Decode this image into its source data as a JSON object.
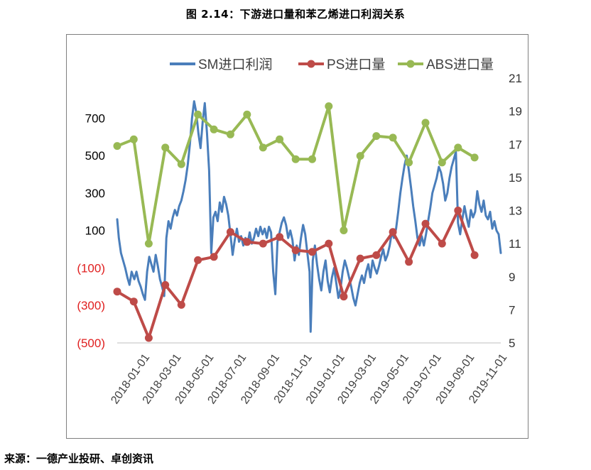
{
  "figure": {
    "caption": "图 2.14：下游进口量和苯乙烯进口利润关系",
    "source": "来源：一德产业投研、卓创资讯"
  },
  "chart_data": {
    "type": "line",
    "title": "",
    "grid": false,
    "legend_position": "top",
    "colors": {
      "sm": "#4a7ebb",
      "ps": "#be4b48",
      "abs": "#98b954",
      "neg_label": "#e02020"
    },
    "left_axis": {
      "ylim": [
        -500,
        800
      ],
      "ticks": [
        -500,
        -300,
        -100,
        100,
        300,
        500,
        700
      ],
      "tick_labels": [
        "(500)",
        "(300)",
        "(100)",
        "100",
        "300",
        "500",
        "700"
      ]
    },
    "right_axis": {
      "ylim": [
        5,
        21
      ],
      "ticks": [
        5,
        7,
        9,
        11,
        13,
        15,
        17,
        19,
        21
      ],
      "tick_labels": [
        "5",
        "7",
        "9",
        "11",
        "13",
        "15",
        "17",
        "19",
        "21"
      ]
    },
    "x_axis": {
      "range": [
        "2018-01-01",
        "2019-12-20"
      ],
      "tick_labels": [
        "2018-01-01",
        "2018-03-01",
        "2018-05-01",
        "2018-07-01",
        "2018-09-01",
        "2018-11-01",
        "2019-01-01",
        "2019-03-01",
        "2019-05-01",
        "2019-07-01",
        "2019-09-01",
        "2019-11-01"
      ]
    },
    "series": [
      {
        "name": "SM进口利润",
        "axis": "left",
        "style": "line",
        "points": [
          [
            "2018-01-01",
            160
          ],
          [
            "2018-01-04",
            60
          ],
          [
            "2018-01-08",
            -20
          ],
          [
            "2018-01-12",
            -60
          ],
          [
            "2018-01-16",
            -100
          ],
          [
            "2018-01-20",
            -150
          ],
          [
            "2018-01-24",
            -190
          ],
          [
            "2018-01-28",
            -120
          ],
          [
            "2018-02-02",
            -160
          ],
          [
            "2018-02-06",
            -120
          ],
          [
            "2018-02-10",
            -170
          ],
          [
            "2018-02-14",
            -200
          ],
          [
            "2018-02-18",
            -240
          ],
          [
            "2018-02-22",
            -270
          ],
          [
            "2018-02-26",
            -120
          ],
          [
            "2018-03-02",
            -40
          ],
          [
            "2018-03-06",
            -80
          ],
          [
            "2018-03-10",
            -120
          ],
          [
            "2018-03-14",
            -30
          ],
          [
            "2018-03-18",
            -90
          ],
          [
            "2018-03-22",
            -160
          ],
          [
            "2018-03-26",
            -200
          ],
          [
            "2018-03-30",
            -250
          ],
          [
            "2018-04-03",
            60
          ],
          [
            "2018-04-07",
            150
          ],
          [
            "2018-04-11",
            110
          ],
          [
            "2018-04-15",
            170
          ],
          [
            "2018-04-19",
            210
          ],
          [
            "2018-04-23",
            180
          ],
          [
            "2018-04-27",
            230
          ],
          [
            "2018-05-01",
            260
          ],
          [
            "2018-05-05",
            310
          ],
          [
            "2018-05-09",
            370
          ],
          [
            "2018-05-13",
            450
          ],
          [
            "2018-05-17",
            560
          ],
          [
            "2018-05-21",
            700
          ],
          [
            "2018-05-25",
            790
          ],
          [
            "2018-05-29",
            730
          ],
          [
            "2018-06-02",
            620
          ],
          [
            "2018-06-06",
            540
          ],
          [
            "2018-06-10",
            680
          ],
          [
            "2018-06-14",
            780
          ],
          [
            "2018-06-18",
            620
          ],
          [
            "2018-06-22",
            420
          ],
          [
            "2018-06-26",
            -20
          ],
          [
            "2018-06-30",
            170
          ],
          [
            "2018-07-04",
            200
          ],
          [
            "2018-07-08",
            150
          ],
          [
            "2018-07-12",
            250
          ],
          [
            "2018-07-16",
            200
          ],
          [
            "2018-07-20",
            280
          ],
          [
            "2018-07-24",
            240
          ],
          [
            "2018-07-28",
            180
          ],
          [
            "2018-08-01",
            80
          ],
          [
            "2018-08-05",
            -30
          ],
          [
            "2018-08-09",
            50
          ],
          [
            "2018-08-13",
            110
          ],
          [
            "2018-08-17",
            40
          ],
          [
            "2018-08-21",
            70
          ],
          [
            "2018-08-25",
            20
          ],
          [
            "2018-08-29",
            60
          ],
          [
            "2018-09-02",
            30
          ],
          [
            "2018-09-06",
            90
          ],
          [
            "2018-09-10",
            30
          ],
          [
            "2018-09-14",
            60
          ],
          [
            "2018-09-18",
            110
          ],
          [
            "2018-09-22",
            70
          ],
          [
            "2018-09-26",
            120
          ],
          [
            "2018-09-30",
            80
          ],
          [
            "2018-10-04",
            110
          ],
          [
            "2018-10-08",
            60
          ],
          [
            "2018-10-12",
            120
          ],
          [
            "2018-10-16",
            90
          ],
          [
            "2018-10-20",
            -120
          ],
          [
            "2018-10-24",
            -240
          ],
          [
            "2018-10-28",
            40
          ],
          [
            "2018-11-01",
            90
          ],
          [
            "2018-11-05",
            140
          ],
          [
            "2018-11-09",
            170
          ],
          [
            "2018-11-13",
            130
          ],
          [
            "2018-11-17",
            60
          ],
          [
            "2018-11-21",
            100
          ],
          [
            "2018-11-25",
            50
          ],
          [
            "2018-11-29",
            -60
          ],
          [
            "2018-12-03",
            20
          ],
          [
            "2018-12-07",
            -30
          ],
          [
            "2018-12-11",
            60
          ],
          [
            "2018-12-15",
            130
          ],
          [
            "2018-12-19",
            80
          ],
          [
            "2018-12-23",
            -20
          ],
          [
            "2018-12-27",
            -120
          ],
          [
            "2018-12-29",
            -440
          ],
          [
            "2019-01-02",
            -60
          ],
          [
            "2019-01-06",
            20
          ],
          [
            "2019-01-10",
            -80
          ],
          [
            "2019-01-14",
            -160
          ],
          [
            "2019-01-18",
            -220
          ],
          [
            "2019-01-22",
            -120
          ],
          [
            "2019-01-26",
            -60
          ],
          [
            "2019-01-30",
            -170
          ],
          [
            "2019-02-03",
            -230
          ],
          [
            "2019-02-07",
            -150
          ],
          [
            "2019-02-11",
            -100
          ],
          [
            "2019-02-15",
            -180
          ],
          [
            "2019-02-19",
            -260
          ],
          [
            "2019-02-23",
            -210
          ],
          [
            "2019-02-27",
            -120
          ],
          [
            "2019-03-03",
            -60
          ],
          [
            "2019-03-07",
            -100
          ],
          [
            "2019-03-11",
            -150
          ],
          [
            "2019-03-15",
            -200
          ],
          [
            "2019-03-19",
            -260
          ],
          [
            "2019-03-23",
            -300
          ],
          [
            "2019-03-27",
            -240
          ],
          [
            "2019-03-31",
            -180
          ],
          [
            "2019-04-04",
            -140
          ],
          [
            "2019-04-08",
            -180
          ],
          [
            "2019-04-12",
            -120
          ],
          [
            "2019-04-16",
            -80
          ],
          [
            "2019-04-20",
            -150
          ],
          [
            "2019-04-24",
            -60
          ],
          [
            "2019-04-28",
            -100
          ],
          [
            "2019-05-02",
            -130
          ],
          [
            "2019-05-06",
            -90
          ],
          [
            "2019-05-10",
            -40
          ],
          [
            "2019-05-14",
            0
          ],
          [
            "2019-05-18",
            -60
          ],
          [
            "2019-05-22",
            -30
          ],
          [
            "2019-05-26",
            20
          ],
          [
            "2019-05-30",
            90
          ],
          [
            "2019-06-03",
            60
          ],
          [
            "2019-06-07",
            110
          ],
          [
            "2019-06-11",
            200
          ],
          [
            "2019-06-15",
            300
          ],
          [
            "2019-06-19",
            380
          ],
          [
            "2019-06-23",
            450
          ],
          [
            "2019-06-27",
            500
          ],
          [
            "2019-07-01",
            420
          ],
          [
            "2019-07-05",
            330
          ],
          [
            "2019-07-09",
            230
          ],
          [
            "2019-07-13",
            150
          ],
          [
            "2019-07-17",
            60
          ],
          [
            "2019-07-21",
            20
          ],
          [
            "2019-07-25",
            70
          ],
          [
            "2019-07-29",
            20
          ],
          [
            "2019-08-02",
            80
          ],
          [
            "2019-08-06",
            150
          ],
          [
            "2019-08-10",
            220
          ],
          [
            "2019-08-14",
            300
          ],
          [
            "2019-08-18",
            340
          ],
          [
            "2019-08-22",
            380
          ],
          [
            "2019-08-26",
            440
          ],
          [
            "2019-08-30",
            410
          ],
          [
            "2019-09-03",
            350
          ],
          [
            "2019-09-07",
            260
          ],
          [
            "2019-09-11",
            300
          ],
          [
            "2019-09-15",
            380
          ],
          [
            "2019-09-19",
            440
          ],
          [
            "2019-09-23",
            480
          ],
          [
            "2019-09-27",
            520
          ],
          [
            "2019-10-01",
            140
          ],
          [
            "2019-10-05",
            80
          ],
          [
            "2019-10-09",
            160
          ],
          [
            "2019-10-13",
            230
          ],
          [
            "2019-10-17",
            170
          ],
          [
            "2019-10-21",
            120
          ],
          [
            "2019-10-25",
            210
          ],
          [
            "2019-10-29",
            170
          ],
          [
            "2019-11-02",
            200
          ],
          [
            "2019-11-06",
            310
          ],
          [
            "2019-11-10",
            240
          ],
          [
            "2019-11-14",
            200
          ],
          [
            "2019-11-18",
            260
          ],
          [
            "2019-11-22",
            180
          ],
          [
            "2019-11-26",
            160
          ],
          [
            "2019-11-30",
            200
          ],
          [
            "2019-12-04",
            110
          ],
          [
            "2019-12-08",
            150
          ],
          [
            "2019-12-12",
            100
          ],
          [
            "2019-12-16",
            80
          ],
          [
            "2019-12-20",
            -20
          ]
        ]
      },
      {
        "name": "PS进口量",
        "axis": "right",
        "style": "line-marker",
        "points": [
          [
            "2018-01-01",
            8.1
          ],
          [
            "2018-02-01",
            7.5
          ],
          [
            "2018-03-01",
            5.3
          ],
          [
            "2018-04-01",
            8.5
          ],
          [
            "2018-05-01",
            7.3
          ],
          [
            "2018-06-01",
            10.0
          ],
          [
            "2018-07-01",
            10.2
          ],
          [
            "2018-08-01",
            11.7
          ],
          [
            "2018-09-01",
            11.1
          ],
          [
            "2018-10-01",
            11.0
          ],
          [
            "2018-11-01",
            11.4
          ],
          [
            "2018-12-01",
            10.6
          ],
          [
            "2019-01-01",
            10.5
          ],
          [
            "2019-02-01",
            11.0
          ],
          [
            "2019-03-01",
            7.8
          ],
          [
            "2019-04-01",
            10.1
          ],
          [
            "2019-05-01",
            10.3
          ],
          [
            "2019-06-01",
            11.7
          ],
          [
            "2019-07-01",
            9.9
          ],
          [
            "2019-08-01",
            12.2
          ],
          [
            "2019-09-01",
            11.0
          ],
          [
            "2019-10-01",
            13.0
          ],
          [
            "2019-11-01",
            10.3
          ]
        ]
      },
      {
        "name": "ABS进口量",
        "axis": "right",
        "style": "line-marker",
        "points": [
          [
            "2018-01-01",
            16.9
          ],
          [
            "2018-02-01",
            17.3
          ],
          [
            "2018-03-01",
            11.0
          ],
          [
            "2018-04-01",
            16.8
          ],
          [
            "2018-05-01",
            15.8
          ],
          [
            "2018-06-01",
            18.8
          ],
          [
            "2018-07-01",
            17.9
          ],
          [
            "2018-08-01",
            17.6
          ],
          [
            "2018-09-01",
            18.8
          ],
          [
            "2018-10-01",
            16.8
          ],
          [
            "2018-11-01",
            17.3
          ],
          [
            "2018-12-01",
            16.1
          ],
          [
            "2019-01-01",
            16.1
          ],
          [
            "2019-02-01",
            19.3
          ],
          [
            "2019-03-01",
            11.8
          ],
          [
            "2019-04-01",
            16.3
          ],
          [
            "2019-05-01",
            17.5
          ],
          [
            "2019-06-01",
            17.4
          ],
          [
            "2019-07-01",
            15.9
          ],
          [
            "2019-08-01",
            18.3
          ],
          [
            "2019-09-01",
            15.9
          ],
          [
            "2019-10-01",
            16.8
          ],
          [
            "2019-11-01",
            16.2
          ]
        ]
      }
    ]
  }
}
